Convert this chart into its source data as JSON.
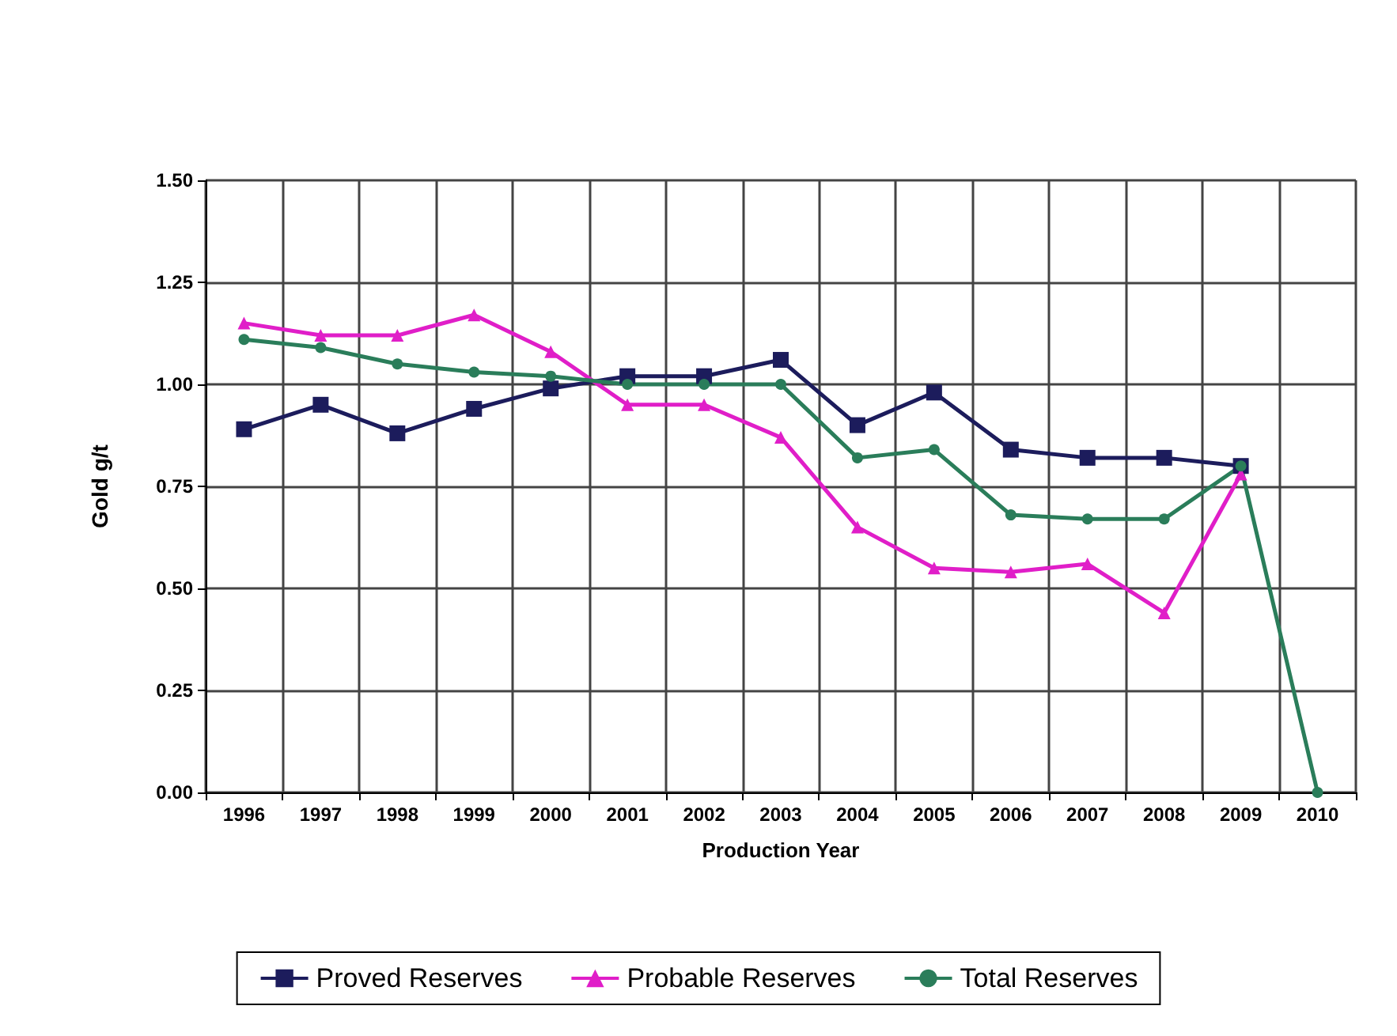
{
  "chart_data": {
    "type": "line",
    "xlabel": "Production Year",
    "ylabel": "Gold g/t",
    "categories": [
      "1996",
      "1997",
      "1998",
      "1999",
      "2000",
      "2001",
      "2002",
      "2003",
      "2004",
      "2005",
      "2006",
      "2007",
      "2008",
      "2009",
      "2010"
    ],
    "series": [
      {
        "name": "Proved Reserves",
        "color": "#1c1c5c",
        "marker": "square",
        "values": [
          0.89,
          0.95,
          0.88,
          0.94,
          0.99,
          1.02,
          1.02,
          1.06,
          0.9,
          0.98,
          0.84,
          0.82,
          0.82,
          0.8,
          null
        ]
      },
      {
        "name": "Probable Reserves",
        "color": "#e01ec8",
        "marker": "triangle",
        "values": [
          1.15,
          1.12,
          1.12,
          1.17,
          1.08,
          0.95,
          0.95,
          0.87,
          0.65,
          0.55,
          0.54,
          0.56,
          0.44,
          0.78,
          null
        ]
      },
      {
        "name": "Total Reserves",
        "color": "#2a7d5a",
        "marker": "circle",
        "values": [
          1.11,
          1.09,
          1.05,
          1.03,
          1.02,
          1.0,
          1.0,
          1.0,
          0.82,
          0.84,
          0.68,
          0.67,
          0.67,
          0.8,
          0.0
        ]
      }
    ],
    "ylim": [
      0,
      1.5
    ],
    "yticks": [
      {
        "value": 0,
        "label": "0.00"
      },
      {
        "value": 0.25,
        "label": "0.25"
      },
      {
        "value": 0.5,
        "label": "0.50"
      },
      {
        "value": 0.75,
        "label": "0.75"
      },
      {
        "value": 1,
        "label": "1.00"
      },
      {
        "value": 1.25,
        "label": "1.25"
      },
      {
        "value": 1.5,
        "label": "1.50"
      }
    ],
    "grid": true,
    "legend": "bottom",
    "line_style": "solid"
  }
}
